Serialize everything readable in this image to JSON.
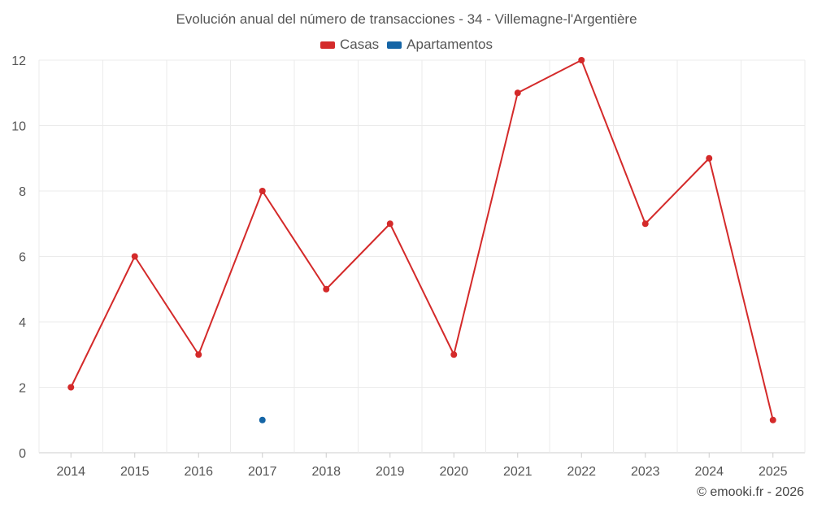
{
  "chart_data": {
    "type": "line",
    "title": "Evolución anual del número de transacciones - 34 - Villemagne-l'Argentière",
    "categories": [
      "2014",
      "2015",
      "2016",
      "2017",
      "2018",
      "2019",
      "2020",
      "2021",
      "2022",
      "2023",
      "2024",
      "2025"
    ],
    "series": [
      {
        "name": "Casas",
        "color": "#d42a2a",
        "values": [
          2,
          6,
          3,
          8,
          5,
          7,
          3,
          11,
          12,
          7,
          9,
          1
        ]
      },
      {
        "name": "Apartamentos",
        "color": "#1565a6",
        "values": [
          null,
          null,
          null,
          1,
          null,
          null,
          null,
          null,
          null,
          null,
          null,
          null
        ]
      }
    ],
    "ylim": [
      0,
      12
    ],
    "yticks": [
      0,
      2,
      4,
      6,
      8,
      10,
      12
    ],
    "xlabel": "",
    "ylabel": "",
    "grid": true,
    "legend_position": "top-center"
  },
  "credit": "© emooki.fr - 2026"
}
